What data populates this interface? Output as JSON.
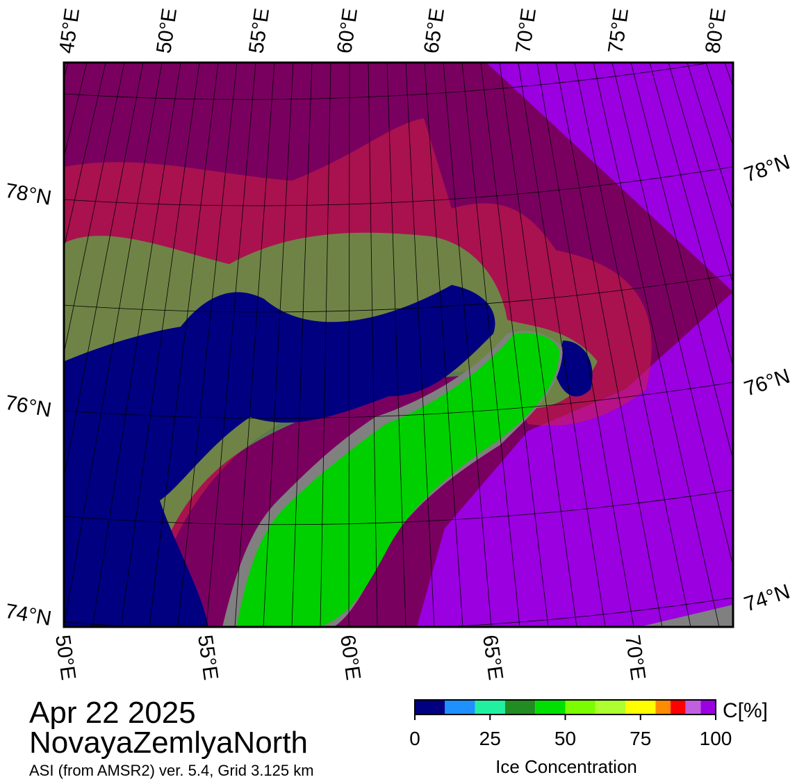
{
  "map": {
    "top_labels": [
      "45°E",
      "50°E",
      "55°E",
      "60°E",
      "65°E",
      "70°E",
      "75°E",
      "80°E"
    ],
    "bottom_labels": [
      "50°E",
      "55°E",
      "60°E",
      "65°E",
      "70°E"
    ],
    "left_labels": [
      "78°N",
      "76°N",
      "74°N"
    ],
    "right_labels": [
      "78°N",
      "76°N",
      "74°N"
    ]
  },
  "footer": {
    "date": "Apr 22 2025",
    "region": "NovayaZemlyaNorth",
    "source": "ASI (from AMSR2) ver. 5.4,  Grid 3.125 km"
  },
  "colorbar": {
    "title": "Ice Concentration",
    "unit": "C[%]",
    "range": [
      0,
      100
    ],
    "ticks": [
      0,
      25,
      50,
      75,
      100
    ],
    "bounds": [
      0,
      10,
      20,
      30,
      40,
      50,
      60,
      70,
      80,
      85,
      90,
      95,
      100
    ],
    "colors": [
      "#000080",
      "#1e90ff",
      "#20f0a0",
      "#228b22",
      "#00e000",
      "#7cfc00",
      "#adff2f",
      "#ffff00",
      "#ff8c00",
      "#ff0000",
      "#c060e0",
      "#9a00e0"
    ]
  }
}
